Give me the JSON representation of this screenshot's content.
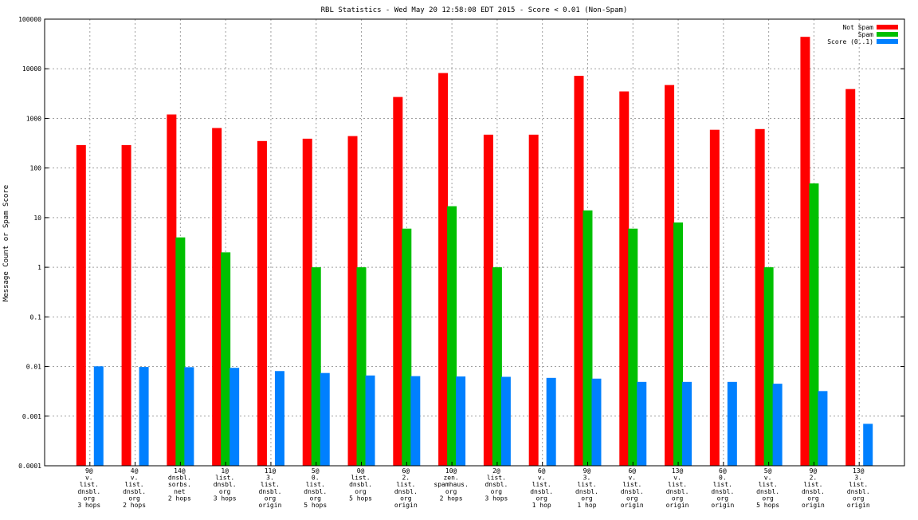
{
  "chart_data": {
    "type": "bar",
    "title": "RBL Statistics - Wed May 20 12:58:08 EDT 2015 - Score < 0.01 (Non-Spam)",
    "ylabel": "Message Count or Spam Score",
    "xlabel": "",
    "yscale": "log",
    "ylim": [
      0.0001,
      100000
    ],
    "yticks": [
      "0.0001",
      "0.001",
      "0.01",
      "0.1",
      "1",
      "10",
      "100",
      "1000",
      "10000",
      "100000"
    ],
    "grid": true,
    "legend_position": "top-right",
    "categories": [
      [
        "9@",
        "v.",
        "list.",
        "dnsbl.",
        "org",
        "3 hops"
      ],
      [
        "4@",
        "v.",
        "list.",
        "dnsbl.",
        "org",
        "2 hops"
      ],
      [
        "14@",
        "dnsbl.",
        "sorbs.",
        "net",
        "2 hops"
      ],
      [
        "1@",
        "list.",
        "dnsbl.",
        "org",
        "3 hops"
      ],
      [
        "11@",
        "3.",
        "list.",
        "dnsbl.",
        "org",
        "origin"
      ],
      [
        "5@",
        "0.",
        "list.",
        "dnsbl.",
        "org",
        "5 hops"
      ],
      [
        "0@",
        "list.",
        "dnsbl.",
        "org",
        "5 hops"
      ],
      [
        "6@",
        "2.",
        "list.",
        "dnsbl.",
        "org",
        "origin"
      ],
      [
        "10@",
        "zen.",
        "spamhaus.",
        "org",
        "2 hops"
      ],
      [
        "2@",
        "list.",
        "dnsbl.",
        "org",
        "3 hops"
      ],
      [
        "6@",
        "v.",
        "list.",
        "dnsbl.",
        "org",
        "1 hop"
      ],
      [
        "9@",
        "3.",
        "list.",
        "dnsbl.",
        "org",
        "1 hop"
      ],
      [
        "6@",
        "v.",
        "list.",
        "dnsbl.",
        "org",
        "origin"
      ],
      [
        "13@",
        "v.",
        "list.",
        "dnsbl.",
        "org",
        "origin"
      ],
      [
        "6@",
        "0.",
        "list.",
        "dnsbl.",
        "org",
        "origin"
      ],
      [
        "5@",
        "v.",
        "list.",
        "dnsbl.",
        "org",
        "5 hops"
      ],
      [
        "9@",
        "2.",
        "list.",
        "dnsbl.",
        "org",
        "origin"
      ],
      [
        "13@",
        "3.",
        "list.",
        "dnsbl.",
        "org",
        "origin"
      ]
    ],
    "series": [
      {
        "name": "Not Spam",
        "color": "#ff0000",
        "values": [
          290,
          290,
          1200,
          640,
          350,
          390,
          440,
          2700,
          8200,
          470,
          470,
          7200,
          3500,
          4700,
          590,
          610,
          44000,
          3900
        ]
      },
      {
        "name": "Spam",
        "color": "#00c000",
        "values": [
          null,
          null,
          4,
          2,
          null,
          1,
          1,
          6,
          17,
          1,
          null,
          14,
          6,
          8,
          null,
          1,
          49,
          null
        ]
      },
      {
        "name": "Score (0..1)",
        "color": "#0080ff",
        "values": [
          0.0101,
          0.0098,
          0.0097,
          0.0094,
          0.0081,
          0.0074,
          0.0066,
          0.0064,
          0.0063,
          0.0062,
          0.0059,
          0.0057,
          0.0049,
          0.0049,
          0.0049,
          0.0045,
          0.0032,
          0.0007
        ]
      }
    ]
  }
}
